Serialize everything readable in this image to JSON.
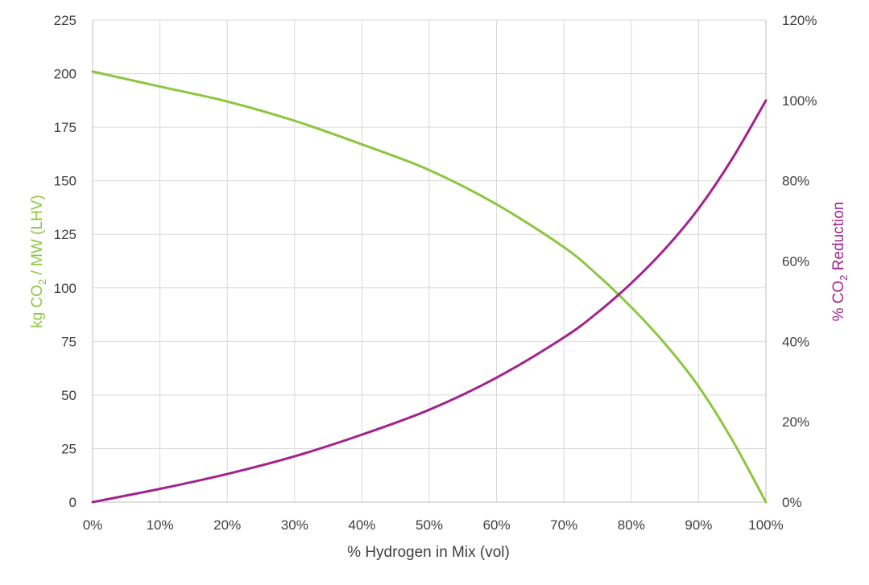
{
  "chart_data": {
    "type": "line",
    "xlabel": "% Hydrogen in Mix (vol)",
    "ylabel_left": {
      "pre": "kg CO",
      "sub": "2",
      "post": " / MW (LHV)"
    },
    "ylabel_right": {
      "pre": "% CO",
      "sub": "2",
      "post": " Reduction"
    },
    "xlim": [
      0,
      100
    ],
    "ylim_left": [
      0,
      225
    ],
    "ylim_right": [
      0,
      120
    ],
    "x_ticks": [
      0,
      10,
      20,
      30,
      40,
      50,
      60,
      70,
      80,
      90,
      100
    ],
    "x_tick_labels": [
      "0%",
      "10%",
      "20%",
      "30%",
      "40%",
      "50%",
      "60%",
      "70%",
      "80%",
      "90%",
      "100%"
    ],
    "y_left_ticks": [
      0,
      25,
      50,
      75,
      100,
      125,
      150,
      175,
      200,
      225
    ],
    "y_left_tick_labels": [
      "0",
      "25",
      "50",
      "75",
      "100",
      "125",
      "150",
      "175",
      "200",
      "225"
    ],
    "y_right_ticks": [
      0,
      20,
      40,
      60,
      80,
      100,
      120
    ],
    "y_right_tick_labels": [
      "0%",
      "20%",
      "40%",
      "60%",
      "80%",
      "100%",
      "120%"
    ],
    "grid": true,
    "legend": "none",
    "series": [
      {
        "axis": "left",
        "color": "#8dc63f",
        "x": [
          0,
          10,
          20,
          30,
          40,
          50,
          60,
          70,
          75,
          80,
          85,
          90,
          95,
          100
        ],
        "y": [
          201,
          194,
          187,
          178,
          167,
          155,
          139,
          119,
          106,
          91,
          74,
          54,
          29,
          0
        ]
      },
      {
        "axis": "right",
        "color": "#a3238e",
        "x": [
          0,
          10,
          20,
          30,
          40,
          50,
          60,
          70,
          75,
          80,
          85,
          90,
          95,
          100
        ],
        "y": [
          0,
          3.3,
          7.0,
          11.4,
          16.8,
          23.0,
          31.0,
          41.0,
          47.2,
          54.5,
          63.0,
          73.1,
          85.5,
          100
        ]
      }
    ]
  }
}
